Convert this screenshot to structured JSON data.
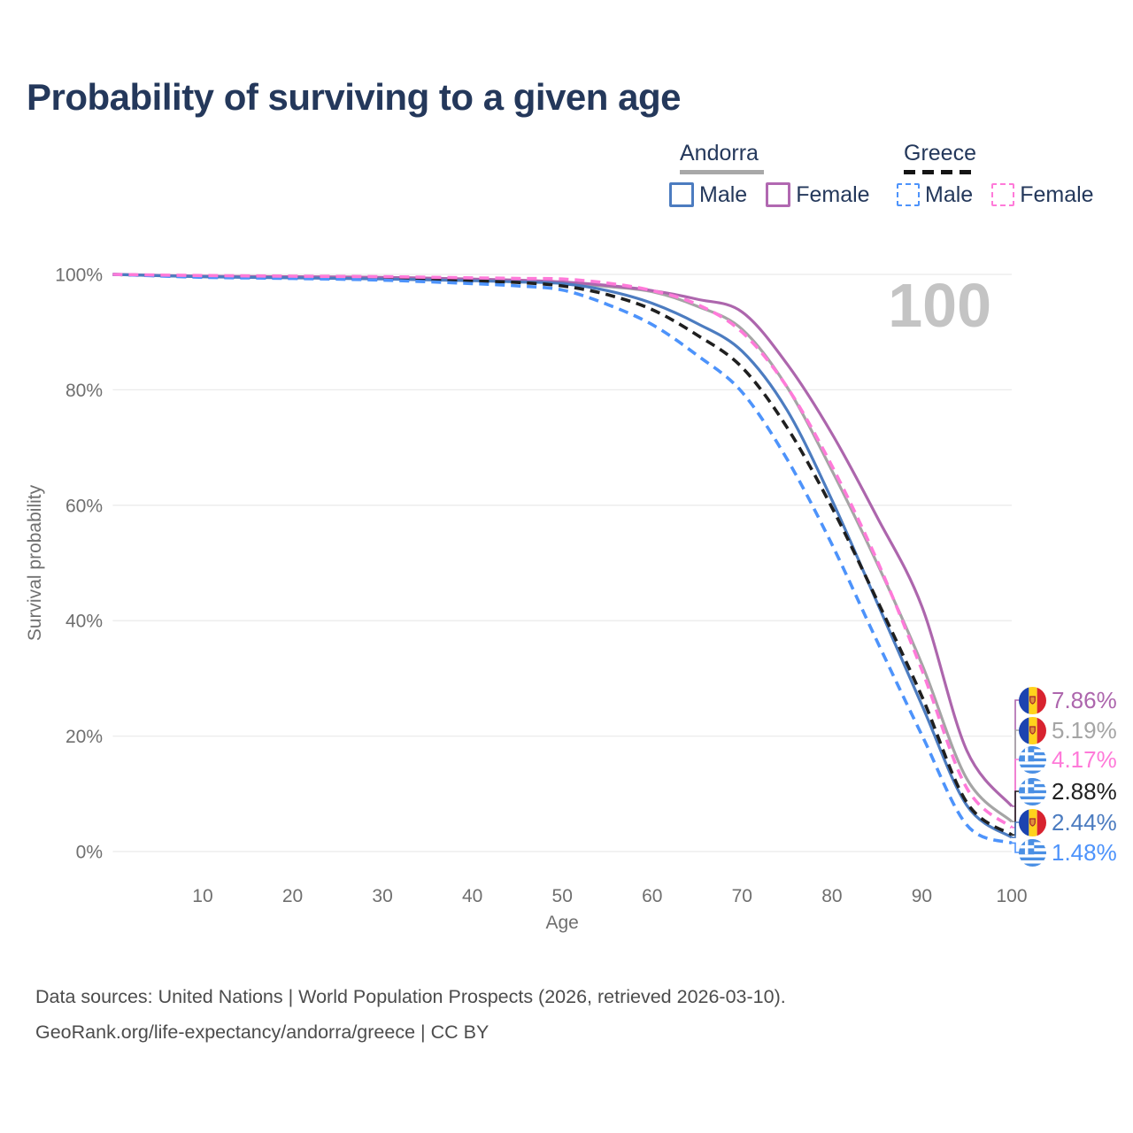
{
  "title": "Probability of surviving to a given age",
  "watermark": "100",
  "legend": {
    "groups": [
      {
        "id": "andorra",
        "label": "Andorra",
        "underline": "solid",
        "underline_color": "#a8a8a8",
        "items": [
          {
            "id": "andorra-male",
            "label": "Male",
            "color": "#4c7cc0",
            "dash": "solid"
          },
          {
            "id": "andorra-female",
            "label": "Female",
            "color": "#b168b1",
            "dash": "solid"
          }
        ]
      },
      {
        "id": "greece",
        "label": "Greece",
        "underline": "dashed",
        "underline_color": "#141414",
        "items": [
          {
            "id": "greece-male",
            "label": "Male",
            "color": "#4d93fb",
            "dash": "dashed"
          },
          {
            "id": "greece-female",
            "label": "Female",
            "color": "#ff7ad9",
            "dash": "dashed"
          }
        ]
      }
    ]
  },
  "chart_data": {
    "type": "line",
    "title": "Probability of surviving to a given age",
    "xlabel": "Age",
    "ylabel": "Survival probability",
    "xlim": [
      0,
      100
    ],
    "ylim": [
      0,
      100
    ],
    "grid": "horizontal",
    "legend_position": "top-right",
    "x_ticks": [
      10,
      20,
      30,
      40,
      50,
      60,
      70,
      80,
      90,
      100
    ],
    "y_ticks": [
      {
        "value": 0,
        "label": "0%"
      },
      {
        "value": 20,
        "label": "20%"
      },
      {
        "value": 40,
        "label": "40%"
      },
      {
        "value": 60,
        "label": "60%"
      },
      {
        "value": 80,
        "label": "80%"
      },
      {
        "value": 100,
        "label": "100%"
      }
    ],
    "x": [
      0,
      10,
      20,
      30,
      40,
      45,
      50,
      55,
      60,
      65,
      70,
      75,
      80,
      85,
      90,
      95,
      100
    ],
    "series": [
      {
        "id": "andorra-female",
        "name": "Andorra Female",
        "country": "Andorra",
        "sex": "Female",
        "style": "solid",
        "color": "#ad66ad",
        "end_label": "7.86%",
        "values": [
          100,
          99.7,
          99.6,
          99.5,
          99.2,
          99.0,
          98.7,
          98.1,
          97.2,
          95.7,
          93.5,
          84.5,
          72.4,
          58.0,
          42.5,
          17.5,
          7.86
        ]
      },
      {
        "id": "andorra-both",
        "name": "Andorra (both sexes)",
        "country": "Andorra",
        "sex": "Both",
        "style": "solid",
        "color": "#a5a5a5",
        "end_label": "5.19%",
        "values": [
          100,
          99.6,
          99.5,
          99.35,
          99.05,
          98.8,
          98.6,
          97.9,
          97.0,
          94.5,
          90.5,
          80.5,
          66.0,
          50.0,
          32.5,
          12.6,
          5.19
        ]
      },
      {
        "id": "greece-female",
        "name": "Greece Female",
        "country": "Greece",
        "sex": "Female",
        "style": "dashed",
        "color": "#ff7ad9",
        "end_label": "4.17%",
        "values": [
          100,
          99.8,
          99.7,
          99.6,
          99.4,
          99.3,
          99.2,
          98.5,
          97.2,
          94.8,
          90.0,
          80.5,
          66.8,
          50.5,
          31.5,
          11.0,
          4.17
        ]
      },
      {
        "id": "greece-both",
        "name": "Greece (both sexes)",
        "country": "Greece",
        "sex": "Both",
        "style": "dashed",
        "color": "#1f1f1f",
        "end_label": "2.88%",
        "values": [
          100,
          99.6,
          99.45,
          99.25,
          98.85,
          98.6,
          98.0,
          96.5,
          93.9,
          89.5,
          83.9,
          73.5,
          59.6,
          43.6,
          26.9,
          8.5,
          2.88
        ]
      },
      {
        "id": "andorra-male",
        "name": "Andorra Male",
        "country": "Andorra",
        "sex": "Male",
        "style": "solid",
        "color": "#4c7cc0",
        "end_label": "2.44%",
        "values": [
          100,
          99.6,
          99.4,
          99.2,
          98.9,
          98.7,
          98.4,
          97.2,
          95.0,
          91.5,
          86.7,
          76.5,
          60.9,
          43.2,
          25.4,
          8.0,
          2.44
        ]
      },
      {
        "id": "greece-male",
        "name": "Greece Male",
        "country": "Greece",
        "sex": "Male",
        "style": "dashed",
        "color": "#4d93fb",
        "end_label": "1.48%",
        "values": [
          100,
          99.5,
          99.3,
          99.0,
          98.4,
          98.0,
          97.3,
          94.8,
          91.3,
          86.0,
          79.6,
          68.0,
          53.2,
          36.5,
          20.2,
          4.6,
          1.48
        ]
      }
    ]
  },
  "footer": {
    "line1": "Data sources: United Nations | World Population Prospects (2026, retrieved 2026-03-10).",
    "line2": "GeoRank.org/life-expectancy/andorra/greece | CC BY"
  }
}
